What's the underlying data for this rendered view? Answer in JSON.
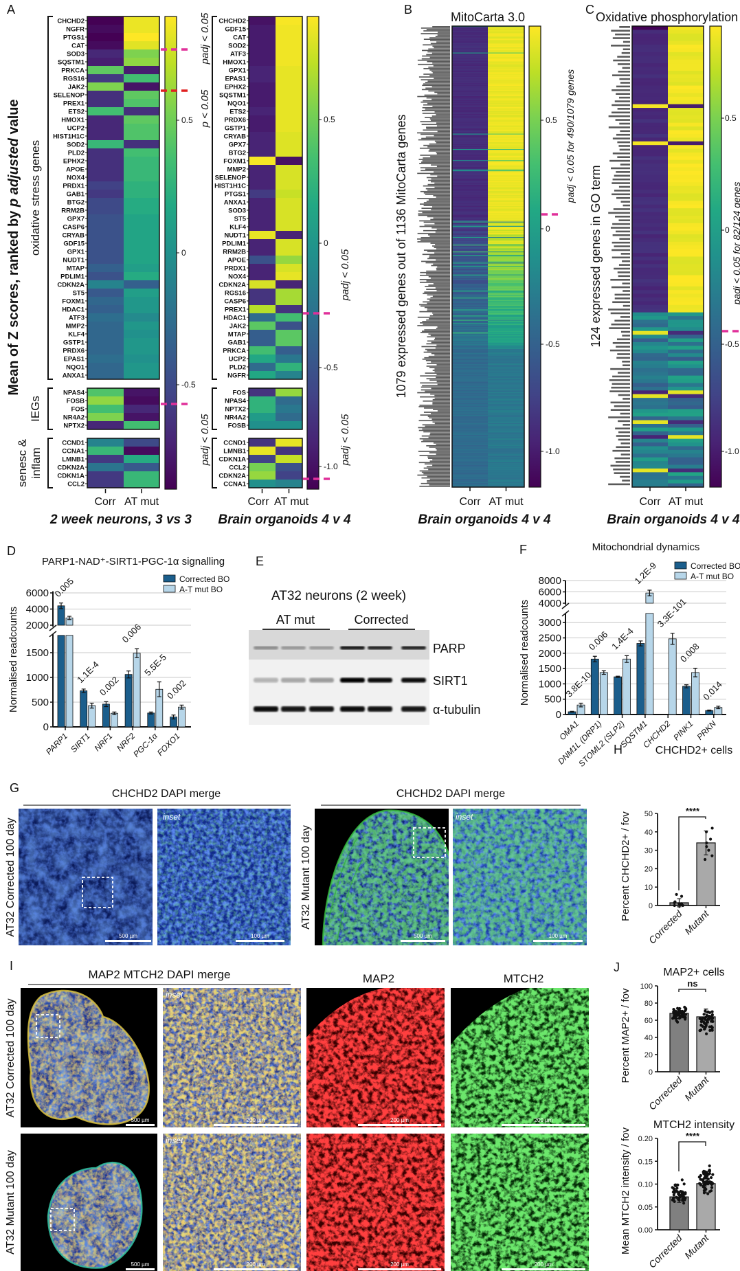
{
  "figure": {
    "panel_labels": {
      "A": "A",
      "B": "B",
      "C": "C",
      "D": "D",
      "E": "E",
      "F": "F",
      "G": "G",
      "H": "H",
      "I": "I",
      "J": "J"
    },
    "colors": {
      "corrected_bar": "#1b5e8c",
      "mutant_bar": "#b7d6e9",
      "corrected_gray": "#808080",
      "mutant_gray": "#a9a9a9",
      "magenta": "#e0309a",
      "red": "#e02020"
    }
  },
  "panel_A": {
    "ylabel_parts": [
      "Mean of Z scores, ranked by ",
      "p adjusted",
      " value"
    ],
    "group_labels": {
      "oxidative": "oxidative stress genes",
      "ieg": "IEGs",
      "senesc_1": "senesc &",
      "senesc_2": "inflam"
    },
    "columns": [
      "Corr",
      "AT mut"
    ],
    "left": {
      "title": "2 week neurons, 3 vs 3",
      "annotations": [
        "padj < 0.05",
        "p < 0.05",
        "padj < 0.05"
      ],
      "colorbar_ticks": [
        "0.5",
        "0",
        "-0.5"
      ]
    },
    "right": {
      "title": "Brain organoids 4 v 4",
      "annotations": [
        "padj < 0.05",
        "padj < 0.05"
      ],
      "colorbar_ticks": [
        "0.5",
        "0",
        "-0.5",
        "-1.0"
      ]
    }
  },
  "panel_B": {
    "title": "MitoCarta 3.0",
    "ylabel": "1079 expressed genes out of 1136 MitoCarta genes",
    "annotation": "padj < 0.05 for 490/1079 genes",
    "columns": [
      "Corr",
      "AT mut"
    ],
    "subtitle": "Brain organoids 4 v 4",
    "colorbar_ticks": [
      "0.5",
      "0",
      "-0.5",
      "-1.0"
    ]
  },
  "panel_C": {
    "title": "Oxidative phosphorylation",
    "ylabel": "124 expressed genes in GO term",
    "annotation": "padj < 0.05 for 82/124 genes",
    "columns": [
      "Corr",
      "AT mut"
    ],
    "subtitle": "Brain organoids 4 v 4",
    "colorbar_ticks": [
      "0.5",
      "0",
      "-0.5",
      "-1.0"
    ]
  },
  "panel_E": {
    "title": "AT32 neurons (2 week)",
    "groups": [
      "AT mut",
      "Corrected"
    ],
    "bands": [
      {
        "name": "PARP",
        "intensity": [
          0.35,
          0.3,
          0.28,
          0.9,
          0.85,
          0.85
        ]
      },
      {
        "name": "SIRT1",
        "intensity": [
          0.25,
          0.3,
          0.35,
          1.0,
          0.95,
          0.95
        ]
      },
      {
        "name": "α-tubulin",
        "intensity": [
          0.95,
          0.9,
          0.92,
          0.95,
          0.92,
          0.9
        ]
      }
    ]
  },
  "panel_G": {
    "title": "CHCHD2 DAPI merge",
    "row_corrected": "AT32 Corrected 100 day",
    "row_mutant": "AT32 Mutant 100 day",
    "inset": "inset",
    "scale_500": "500 µm",
    "scale_100": "100 µm"
  },
  "panel_I": {
    "merge_title": "MAP2 MTCH2 DAPI merge",
    "map2_title": "MAP2",
    "mtch2_title": "MTCH2",
    "row_corrected": "AT32 Corrected 100 day",
    "row_mutant": "AT32 Mutant 100 day",
    "inset": "inset",
    "scale_500": "500 µm",
    "scale_200": "200 µm"
  },
  "chart_data": [
    {
      "id": "A_left",
      "type": "heatmap",
      "title": "2 week neurons, 3 vs 3",
      "columns": [
        "Corr",
        "AT mut"
      ],
      "colorbar_range": [
        -0.9,
        0.9
      ],
      "groups": [
        {
          "name": "oxidative stress genes",
          "rows": [
            [
              "CHCHD2",
              -0.9,
              0.85
            ],
            [
              "NGFR",
              -0.85,
              0.85
            ],
            [
              "PTGS1",
              -0.9,
              0.9
            ],
            [
              "CAT",
              -0.85,
              0.82
            ],
            [
              "SOD3",
              -0.7,
              0.55
            ],
            [
              "SQSTM1",
              -0.75,
              0.6
            ],
            [
              "PRKCA",
              0.45,
              -0.75
            ],
            [
              "RGS16",
              -0.6,
              0.35
            ],
            [
              "JAK2",
              0.55,
              -0.8
            ],
            [
              "SELENOP",
              -0.65,
              0.45
            ],
            [
              "PREX1",
              -0.65,
              0.4
            ],
            [
              "ETS2",
              0.35,
              -0.65
            ],
            [
              "HMOX1",
              -0.7,
              0.45
            ],
            [
              "UCP2",
              -0.7,
              0.4
            ],
            [
              "HIST1H1C",
              -0.7,
              0.4
            ],
            [
              "SOD2",
              0.3,
              -0.65
            ],
            [
              "PLD2",
              -0.65,
              0.35
            ],
            [
              "EPHX2",
              -0.65,
              0.3
            ],
            [
              "APOE",
              -0.65,
              0.3
            ],
            [
              "NOX4",
              -0.65,
              0.3
            ],
            [
              "PRDX1",
              -0.55,
              0.25
            ],
            [
              "GAB1",
              -0.6,
              0.25
            ],
            [
              "BTG2",
              -0.5,
              0.2
            ],
            [
              "RRM2B",
              -0.5,
              0.2
            ],
            [
              "GPX7",
              -0.45,
              0.15
            ],
            [
              "CASP6",
              -0.45,
              0.15
            ],
            [
              "CRYAB",
              -0.45,
              0.15
            ],
            [
              "GDF15",
              -0.45,
              0.15
            ],
            [
              "GPX1",
              -0.45,
              0.15
            ],
            [
              "NUDT1",
              -0.45,
              0.15
            ],
            [
              "MTAP",
              -0.35,
              0.1
            ],
            [
              "PDLIM1",
              -0.45,
              0.2
            ],
            [
              "CDKN2A",
              -0.1,
              -0.35
            ],
            [
              "ST5",
              -0.4,
              0.1
            ],
            [
              "FOXM1",
              -0.3,
              0.05
            ],
            [
              "HDAC1",
              -0.35,
              0.05
            ],
            [
              "ATF3",
              -0.25,
              -0.05
            ],
            [
              "MMP2",
              -0.3,
              0.05
            ],
            [
              "KLF4",
              -0.3,
              0.0
            ],
            [
              "GSTP1",
              -0.3,
              0.05
            ],
            [
              "PRDX6",
              -0.3,
              0.05
            ],
            [
              "EPAS1",
              -0.25,
              0.0
            ],
            [
              "NQO1",
              -0.3,
              0.05
            ],
            [
              "ANXA1",
              -0.3,
              0.05
            ]
          ]
        },
        {
          "name": "IEGs",
          "rows": [
            [
              "NPAS4",
              0.4,
              -0.8
            ],
            [
              "FOSB",
              0.6,
              -0.85
            ],
            [
              "FOS",
              0.35,
              -0.7
            ],
            [
              "NR4A2",
              0.55,
              -0.8
            ],
            [
              "NPTX2",
              -0.7,
              0.35
            ]
          ]
        },
        {
          "name": "senesc & inflam",
          "rows": [
            [
              "CCND1",
              -0.1,
              -0.5
            ],
            [
              "CCNA1",
              0.3,
              -0.85
            ],
            [
              "LMNB1",
              -0.6,
              0.2
            ],
            [
              "CDKN2A",
              -0.2,
              -0.4
            ],
            [
              "CDKN1A",
              -0.6,
              0.3
            ],
            [
              "CCL2",
              -0.6,
              0.3
            ]
          ]
        }
      ]
    },
    {
      "id": "A_right",
      "type": "heatmap",
      "title": "Brain organoids 4 v 4",
      "columns": [
        "Corr",
        "AT mut"
      ],
      "colorbar_range": [
        -1.1,
        0.92
      ],
      "groups": [
        {
          "name": "oxidative stress genes",
          "rows": [
            [
              "CHCHD2",
              -1.0,
              0.9
            ],
            [
              "GDF15",
              -0.95,
              0.88
            ],
            [
              "CAT",
              -0.95,
              0.88
            ],
            [
              "SOD2",
              -0.95,
              0.88
            ],
            [
              "ATF3",
              -0.95,
              0.88
            ],
            [
              "HMOX1",
              -0.95,
              0.88
            ],
            [
              "GPX1",
              -0.9,
              0.85
            ],
            [
              "EPAS1",
              -0.9,
              0.85
            ],
            [
              "EPHX2",
              -0.95,
              0.85
            ],
            [
              "SQSTM1",
              -0.95,
              0.85
            ],
            [
              "NQO1",
              -0.95,
              0.85
            ],
            [
              "ETS2",
              -0.9,
              0.85
            ],
            [
              "PRDX6",
              -0.95,
              0.85
            ],
            [
              "GSTP1",
              -0.95,
              0.85
            ],
            [
              "CRYAB",
              -0.9,
              0.82
            ],
            [
              "GPX7",
              -0.9,
              0.82
            ],
            [
              "BTG2",
              -0.9,
              0.82
            ],
            [
              "FOXM1",
              0.9,
              -1.0
            ],
            [
              "MMP2",
              -0.9,
              0.8
            ],
            [
              "SELENOP",
              -0.9,
              0.8
            ],
            [
              "HIST1H1C",
              -0.9,
              0.8
            ],
            [
              "PTGS1",
              -0.75,
              0.75
            ],
            [
              "ANXA1",
              -0.9,
              0.8
            ],
            [
              "SOD3",
              -0.9,
              0.8
            ],
            [
              "ST5",
              -0.9,
              0.8
            ],
            [
              "KLF4",
              -0.9,
              0.8
            ],
            [
              "NUDT1",
              0.85,
              -0.9
            ],
            [
              "PDLIM1",
              -0.9,
              0.8
            ],
            [
              "RRM2B",
              -0.9,
              0.8
            ],
            [
              "APOE",
              -0.6,
              0.6
            ],
            [
              "PRDX1",
              -0.9,
              0.8
            ],
            [
              "NOX4",
              -0.9,
              0.85
            ],
            [
              "CDKN2A",
              0.8,
              -0.9
            ],
            [
              "RGS16",
              -0.8,
              0.65
            ],
            [
              "CASP6",
              -0.8,
              0.65
            ],
            [
              "PREX1",
              0.7,
              -0.8
            ],
            [
              "HDAC1",
              -0.4,
              0.3
            ],
            [
              "JAK2",
              0.4,
              -0.6
            ],
            [
              "MTAP",
              -0.5,
              0.4
            ],
            [
              "GAB1",
              -0.5,
              0.4
            ],
            [
              "PRKCA",
              0.3,
              -0.5
            ],
            [
              "UCP2",
              0.1,
              -0.3
            ],
            [
              "PLD2",
              -0.4,
              0.2
            ],
            [
              "NGFR",
              0.1,
              -0.2
            ]
          ]
        },
        {
          "name": "IEGs",
          "rows": [
            [
              "FOS",
              -0.8,
              0.6
            ],
            [
              "NPAS4",
              0.2,
              -0.4
            ],
            [
              "NPTX2",
              0.2,
              -0.3
            ],
            [
              "NR4A2",
              0.0,
              -0.4
            ],
            [
              "FOSB",
              -0.1,
              -0.1
            ]
          ]
        },
        {
          "name": "senesc & inflam",
          "rows": [
            [
              "CCND1",
              -0.8,
              0.85
            ],
            [
              "LMNB1",
              0.85,
              -0.8
            ],
            [
              "CDKN1A",
              -0.7,
              0.75
            ],
            [
              "CCL2",
              0.5,
              -0.6
            ],
            [
              "CDKN2A",
              0.6,
              -0.7
            ],
            [
              "CCNA1",
              -0.1,
              -0.2
            ]
          ]
        }
      ]
    },
    {
      "id": "D",
      "type": "bar",
      "title": "PARP1-NAD⁺-SIRT1-PGC-1α signalling",
      "xlabel": "",
      "ylabel": "Normalised readcounts",
      "categories": [
        "PARP1",
        "SIRT1",
        "NRF1",
        "NRF2",
        "PGC-1α",
        "FOXO1"
      ],
      "series": [
        {
          "name": "Corrected BO",
          "values": [
            4400,
            730,
            460,
            1060,
            280,
            200
          ],
          "errors": [
            350,
            35,
            50,
            70,
            20,
            40
          ]
        },
        {
          "name": "A-T mut BO",
          "values": [
            2900,
            430,
            275,
            1490,
            760,
            400
          ],
          "errors": [
            200,
            50,
            25,
            90,
            150,
            40
          ]
        }
      ],
      "pvalues": [
        "0.005",
        "1.1E-4",
        "0.002",
        "0.006",
        "5.5E-5",
        "0.002"
      ],
      "yticks_lower": [
        0,
        500,
        1000,
        1500
      ],
      "yticks_upper": [
        2000,
        4000,
        6000
      ],
      "axis_break": [
        1850,
        2000
      ],
      "ylim": [
        0,
        6000
      ],
      "grid": true,
      "legend": "top-right"
    },
    {
      "id": "F",
      "type": "bar",
      "title": "Mitochondrial dynamics",
      "xlabel": "",
      "ylabel": "Normalised readcounts",
      "categories": [
        "OMA1",
        "DNM1L (DRP1)",
        "STOML2 (SLP2)",
        "SQSTM1",
        "CHCHD2",
        "PINK1",
        "PRKN"
      ],
      "series": [
        {
          "name": "Corrected BO",
          "values": [
            90,
            1810,
            1230,
            2320,
            0,
            920,
            130
          ],
          "errors": [
            15,
            90,
            20,
            80,
            0,
            50,
            15
          ]
        },
        {
          "name": "A-T mut BO",
          "values": [
            310,
            1370,
            1810,
            5800,
            2470,
            1370,
            230
          ],
          "errors": [
            60,
            60,
            110,
            500,
            180,
            140,
            40
          ]
        }
      ],
      "pvalues": [
        "3.8E-10",
        "0.006",
        "1.4E-4",
        "1.2E-9",
        "3.3E-101",
        "0.008",
        "0.014"
      ],
      "yticks_lower": [
        0,
        500,
        1000,
        1500,
        2000,
        2500,
        3000
      ],
      "yticks_upper": [
        4000,
        6000,
        8000
      ],
      "axis_break": [
        3300,
        4000
      ],
      "ylim": [
        0,
        8000
      ],
      "grid": true,
      "legend": "top-right"
    },
    {
      "id": "H",
      "type": "bar",
      "title": "CHCHD2+ cells",
      "ylabel": "Percent CHCHD2+ / fov",
      "categories": [
        "Corrected",
        "Mutant"
      ],
      "values": [
        1.5,
        34
      ],
      "errors": [
        2.2,
        6.5
      ],
      "points": [
        [
          0,
          0,
          0.5,
          1,
          1,
          1.5,
          2,
          5,
          6
        ],
        [
          25,
          27,
          30,
          32,
          34,
          36,
          40,
          42
        ]
      ],
      "ylim": [
        0,
        50
      ],
      "yticks": [
        0,
        10,
        20,
        30,
        40,
        50
      ],
      "significance": "****"
    },
    {
      "id": "J_map2",
      "type": "bar",
      "title": "MAP2+ cells",
      "ylabel": "Percent MAP2+ / fov",
      "categories": [
        "Corrected",
        "Mutant"
      ],
      "values": [
        68,
        64
      ],
      "errors": [
        6,
        9
      ],
      "point_range": [
        [
          55,
          79
        ],
        [
          38,
          82
        ]
      ],
      "ylim": [
        0,
        100
      ],
      "yticks": [
        0,
        20,
        40,
        60,
        80,
        100
      ],
      "significance": "ns"
    },
    {
      "id": "J_mtch2",
      "type": "bar",
      "title": "MTCH2 intensity",
      "ylabel": "Mean MTCH2 intensity / fov",
      "categories": [
        "Corrected",
        "Mutant"
      ],
      "values": [
        0.072,
        0.101
      ],
      "errors": [
        0.012,
        0.02
      ],
      "point_range": [
        [
          0.045,
          0.113
        ],
        [
          0.062,
          0.155
        ]
      ],
      "ylim": [
        0,
        0.2
      ],
      "yticks": [
        "0.00",
        "0.05",
        "0.10",
        "0.15",
        "0.20"
      ],
      "significance": "****"
    }
  ]
}
